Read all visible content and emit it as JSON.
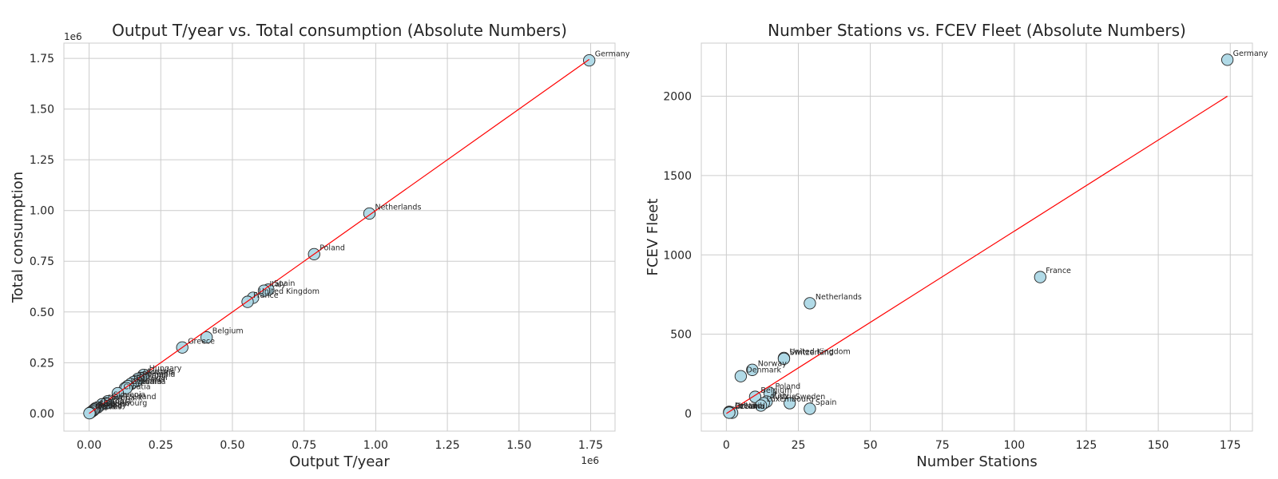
{
  "chart_data": [
    {
      "type": "scatter",
      "title": "Output T/year vs. Total consumption (Absolute Numbers)",
      "xlabel": "Output T/year",
      "ylabel": "Total consumption",
      "x_exponent": "1e6",
      "y_exponent": "1e6",
      "xlim": [
        -0.088,
        1.835
      ],
      "ylim": [
        -0.087,
        1.825
      ],
      "xticks": [
        "0.00",
        "0.25",
        "0.50",
        "0.75",
        "1.00",
        "1.25",
        "1.50",
        "1.75"
      ],
      "yticks": [
        "0.00",
        "0.25",
        "0.50",
        "0.75",
        "1.00",
        "1.25",
        "1.50",
        "1.75"
      ],
      "xtick_values": [
        0,
        0.25,
        0.5,
        0.75,
        1.0,
        1.25,
        1.5,
        1.75
      ],
      "ytick_values": [
        0,
        0.25,
        0.5,
        0.75,
        1.0,
        1.25,
        1.5,
        1.75
      ],
      "grid": true,
      "points": [
        {
          "label": "Germany",
          "x": 1.745,
          "y": 1.74
        },
        {
          "label": "Netherlands",
          "x": 0.978,
          "y": 0.985
        },
        {
          "label": "Poland",
          "x": 0.785,
          "y": 0.785
        },
        {
          "label": "Spain",
          "x": 0.625,
          "y": 0.61
        },
        {
          "label": "Italy",
          "x": 0.61,
          "y": 0.605
        },
        {
          "label": "United Kingdom",
          "x": 0.572,
          "y": 0.57
        },
        {
          "label": "France",
          "x": 0.553,
          "y": 0.55
        },
        {
          "label": "Belgium",
          "x": 0.41,
          "y": 0.375
        },
        {
          "label": "Greece",
          "x": 0.325,
          "y": 0.325
        },
        {
          "label": "Hungary",
          "x": 0.19,
          "y": 0.19
        },
        {
          "label": "Austria",
          "x": 0.18,
          "y": 0.175
        },
        {
          "label": "Slovakia",
          "x": 0.17,
          "y": 0.17
        },
        {
          "label": "Romania",
          "x": 0.165,
          "y": 0.16
        },
        {
          "label": "Finland",
          "x": 0.155,
          "y": 0.155
        },
        {
          "label": "Portugal",
          "x": 0.145,
          "y": 0.145
        },
        {
          "label": "Bulgaria",
          "x": 0.135,
          "y": 0.135
        },
        {
          "label": "Lithuania",
          "x": 0.125,
          "y": 0.125
        },
        {
          "label": "Czechia",
          "x": 0.13,
          "y": 0.125
        },
        {
          "label": "Croatia",
          "x": 0.1,
          "y": 0.1
        },
        {
          "label": "Slovenia",
          "x": 0.065,
          "y": 0.06
        },
        {
          "label": "Switzerland",
          "x": 0.06,
          "y": 0.05
        },
        {
          "label": "Denmark",
          "x": 0.045,
          "y": 0.045
        },
        {
          "label": "Estonia",
          "x": 0.03,
          "y": 0.03
        },
        {
          "label": "Latvia",
          "x": 0.022,
          "y": 0.025
        },
        {
          "label": "Luxembourg",
          "x": 0.018,
          "y": 0.02
        },
        {
          "label": "Sweden",
          "x": 0.015,
          "y": 0.015
        },
        {
          "label": "Norway",
          "x": 0.01,
          "y": 0.01
        },
        {
          "label": "Ireland",
          "x": 0.005,
          "y": 0.005
        },
        {
          "label": "Cyprus",
          "x": 0.002,
          "y": 0.002
        },
        {
          "label": "Malta",
          "x": 0.001,
          "y": 0.001
        }
      ],
      "trendline": [
        [
          0,
          0
        ],
        [
          1.745,
          1.745
        ]
      ]
    },
    {
      "type": "scatter",
      "title": "Number Stations vs. FCEV Fleet (Absolute Numbers)",
      "xlabel": "Number Stations",
      "ylabel": "FCEV Fleet",
      "xlim": [
        -8.7,
        182.7
      ],
      "ylim": [
        -111,
        2335
      ],
      "xticks": [
        "0",
        "25",
        "50",
        "75",
        "100",
        "125",
        "150",
        "175"
      ],
      "yticks": [
        "0",
        "500",
        "1000",
        "1500",
        "2000"
      ],
      "xtick_values": [
        0,
        25,
        50,
        75,
        100,
        125,
        150,
        175
      ],
      "ytick_values": [
        0,
        500,
        1000,
        1500,
        2000
      ],
      "grid": true,
      "points": [
        {
          "label": "Germany",
          "x": 174,
          "y": 2230
        },
        {
          "label": "France",
          "x": 109,
          "y": 860
        },
        {
          "label": "Netherlands",
          "x": 29,
          "y": 695
        },
        {
          "label": "United Kingdom",
          "x": 20,
          "y": 350
        },
        {
          "label": "Switzerland",
          "x": 20,
          "y": 345
        },
        {
          "label": "Norway",
          "x": 9,
          "y": 275
        },
        {
          "label": "Denmark",
          "x": 5,
          "y": 235
        },
        {
          "label": "Poland",
          "x": 15,
          "y": 130
        },
        {
          "label": "Belgium",
          "x": 10,
          "y": 105
        },
        {
          "label": "Italy",
          "x": 14,
          "y": 75
        },
        {
          "label": "Austria",
          "x": 13,
          "y": 65
        },
        {
          "label": "Sweden",
          "x": 22,
          "y": 65
        },
        {
          "label": "Luxembourg",
          "x": 12,
          "y": 50
        },
        {
          "label": "Spain",
          "x": 29,
          "y": 30
        },
        {
          "label": "Latvia",
          "x": 1,
          "y": 10
        },
        {
          "label": "Iceland",
          "x": 2,
          "y": 5
        },
        {
          "label": "Finland",
          "x": 1,
          "y": 8
        },
        {
          "label": "Czechia",
          "x": 1,
          "y": 5
        }
      ],
      "trendline": [
        [
          0,
          0
        ],
        [
          174,
          2000
        ]
      ]
    }
  ]
}
